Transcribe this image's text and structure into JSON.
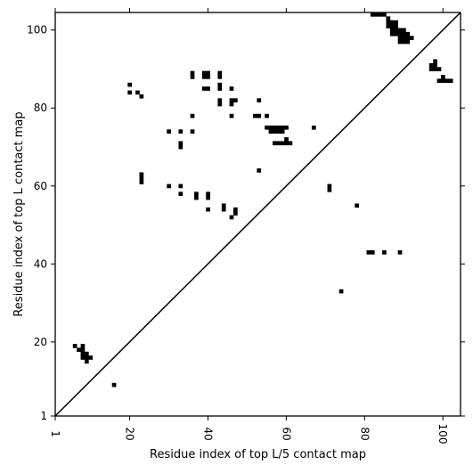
{
  "chart_data": {
    "type": "scatter",
    "xlabel": "Residue index of top L/5 contact map",
    "ylabel": "Residue index of top L contact map",
    "xlim": [
      1,
      104.5
    ],
    "ylim": [
      1,
      104.5
    ],
    "x_ticks": [
      1,
      20,
      40,
      60,
      80,
      100
    ],
    "y_ticks": [
      1,
      20,
      40,
      60,
      80,
      100
    ],
    "grid": false,
    "diagonal": true,
    "points": [
      [
        82,
        104
      ],
      [
        83,
        104
      ],
      [
        84,
        104
      ],
      [
        85,
        104
      ],
      [
        86,
        103
      ],
      [
        86,
        102
      ],
      [
        86,
        101
      ],
      [
        87,
        102
      ],
      [
        88,
        102
      ],
      [
        87,
        101
      ],
      [
        88,
        101
      ],
      [
        87,
        100
      ],
      [
        88,
        100
      ],
      [
        89,
        100
      ],
      [
        90,
        100
      ],
      [
        87,
        99
      ],
      [
        88,
        99
      ],
      [
        89,
        99
      ],
      [
        90,
        99
      ],
      [
        91,
        99
      ],
      [
        89,
        98
      ],
      [
        90,
        98
      ],
      [
        91,
        98
      ],
      [
        92,
        98
      ],
      [
        89,
        97
      ],
      [
        90,
        97
      ],
      [
        91,
        97
      ],
      [
        98,
        92
      ],
      [
        97,
        91
      ],
      [
        98,
        91
      ],
      [
        97,
        90
      ],
      [
        98,
        90
      ],
      [
        99,
        90
      ],
      [
        100,
        88
      ],
      [
        99,
        87
      ],
      [
        100,
        87
      ],
      [
        101,
        87
      ],
      [
        102,
        87
      ],
      [
        20,
        86
      ],
      [
        20,
        84
      ],
      [
        22,
        84
      ],
      [
        23,
        83
      ],
      [
        36,
        89
      ],
      [
        36,
        88
      ],
      [
        39,
        89
      ],
      [
        40,
        89
      ],
      [
        39,
        88
      ],
      [
        40,
        88
      ],
      [
        43,
        89
      ],
      [
        43,
        88
      ],
      [
        43,
        86
      ],
      [
        43,
        85
      ],
      [
        39,
        85
      ],
      [
        40,
        85
      ],
      [
        46,
        85
      ],
      [
        43,
        82
      ],
      [
        43,
        81
      ],
      [
        46,
        82
      ],
      [
        47,
        82
      ],
      [
        46,
        81
      ],
      [
        53,
        82
      ],
      [
        36,
        78
      ],
      [
        46,
        78
      ],
      [
        52,
        78
      ],
      [
        53,
        78
      ],
      [
        55,
        78
      ],
      [
        30,
        74
      ],
      [
        33,
        74
      ],
      [
        36,
        74
      ],
      [
        33,
        71
      ],
      [
        33,
        70
      ],
      [
        55,
        75
      ],
      [
        56,
        75
      ],
      [
        57,
        75
      ],
      [
        58,
        75
      ],
      [
        59,
        75
      ],
      [
        60,
        75
      ],
      [
        67,
        75
      ],
      [
        56,
        74
      ],
      [
        57,
        74
      ],
      [
        58,
        74
      ],
      [
        59,
        74
      ],
      [
        60,
        72
      ],
      [
        57,
        71
      ],
      [
        58,
        71
      ],
      [
        59,
        71
      ],
      [
        60,
        71
      ],
      [
        61,
        71
      ],
      [
        53,
        64
      ],
      [
        23,
        63
      ],
      [
        23,
        62
      ],
      [
        23,
        61
      ],
      [
        30,
        60
      ],
      [
        33,
        60
      ],
      [
        33,
        58
      ],
      [
        37,
        58
      ],
      [
        40,
        58
      ],
      [
        37,
        57
      ],
      [
        40,
        57
      ],
      [
        71,
        60
      ],
      [
        71,
        59
      ],
      [
        78,
        55
      ],
      [
        44,
        55
      ],
      [
        44,
        54
      ],
      [
        40,
        54
      ],
      [
        47,
        54
      ],
      [
        47,
        53
      ],
      [
        46,
        52
      ],
      [
        81,
        43
      ],
      [
        82,
        43
      ],
      [
        85,
        43
      ],
      [
        89,
        43
      ],
      [
        74,
        33
      ],
      [
        6,
        19
      ],
      [
        8,
        19
      ],
      [
        7,
        18
      ],
      [
        8,
        18
      ],
      [
        8,
        17
      ],
      [
        9,
        17
      ],
      [
        8,
        16
      ],
      [
        9,
        16
      ],
      [
        10,
        16
      ],
      [
        9,
        15
      ],
      [
        16,
        9
      ]
    ]
  }
}
